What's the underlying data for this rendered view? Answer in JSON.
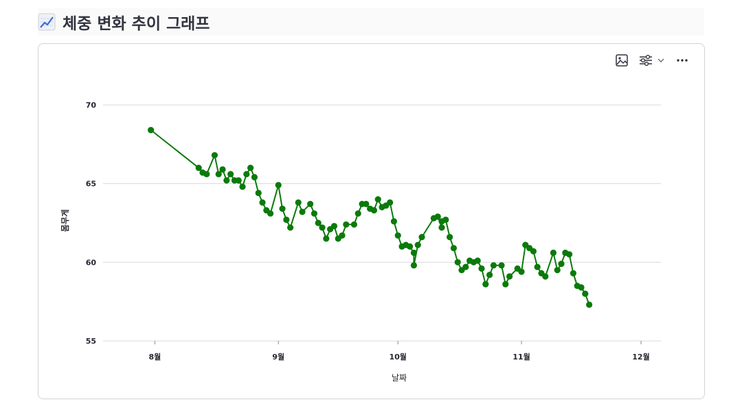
{
  "page": {
    "title": "체중 변화 추이 그래프",
    "title_icon": "chart-increasing-icon"
  },
  "toolbar": {
    "icons": [
      "image-download-icon",
      "filter-sliders-icon",
      "chevron-down-icon",
      "more-options-icon"
    ]
  },
  "colors": {
    "line": "#0a7a0a",
    "grid": "#d9d9d9",
    "text": "#262730"
  },
  "chart_data": {
    "type": "line",
    "title": "",
    "xlabel": "날짜",
    "ylabel": "몸무게",
    "xlim": [
      "2024-07-19",
      "2024-12-06"
    ],
    "ylim": [
      55,
      71
    ],
    "yticks": [
      55,
      60,
      65,
      70
    ],
    "xticks": [
      {
        "label": "8월",
        "date": "2024-08-01"
      },
      {
        "label": "9월",
        "date": "2024-09-01"
      },
      {
        "label": "10월",
        "date": "2024-10-01"
      },
      {
        "label": "11월",
        "date": "2024-11-01"
      },
      {
        "label": "12월",
        "date": "2024-12-01"
      }
    ],
    "grid": true,
    "legend": "none",
    "series": [
      {
        "points": [
          [
            "2024-07-31",
            68.4
          ],
          [
            "2024-08-12",
            66.0
          ],
          [
            "2024-08-13",
            65.7
          ],
          [
            "2024-08-14",
            65.6
          ],
          [
            "2024-08-16",
            66.8
          ],
          [
            "2024-08-17",
            65.6
          ],
          [
            "2024-08-18",
            65.9
          ],
          [
            "2024-08-19",
            65.2
          ],
          [
            "2024-08-20",
            65.6
          ],
          [
            "2024-08-21",
            65.2
          ],
          [
            "2024-08-22",
            65.2
          ],
          [
            "2024-08-23",
            64.8
          ],
          [
            "2024-08-24",
            65.6
          ],
          [
            "2024-08-25",
            66.0
          ],
          [
            "2024-08-26",
            65.4
          ],
          [
            "2024-08-27",
            64.4
          ],
          [
            "2024-08-28",
            63.8
          ],
          [
            "2024-08-29",
            63.3
          ],
          [
            "2024-08-30",
            63.1
          ],
          [
            "2024-09-01",
            64.9
          ],
          [
            "2024-09-02",
            63.4
          ],
          [
            "2024-09-03",
            62.7
          ],
          [
            "2024-09-04",
            62.2
          ],
          [
            "2024-09-06",
            63.8
          ],
          [
            "2024-09-07",
            63.2
          ],
          [
            "2024-09-09",
            63.7
          ],
          [
            "2024-09-10",
            63.1
          ],
          [
            "2024-09-11",
            62.5
          ],
          [
            "2024-09-12",
            62.2
          ],
          [
            "2024-09-13",
            61.5
          ],
          [
            "2024-09-14",
            62.1
          ],
          [
            "2024-09-15",
            62.3
          ],
          [
            "2024-09-16",
            61.5
          ],
          [
            "2024-09-17",
            61.7
          ],
          [
            "2024-09-18",
            62.4
          ],
          [
            "2024-09-20",
            62.4
          ],
          [
            "2024-09-21",
            63.1
          ],
          [
            "2024-09-22",
            63.7
          ],
          [
            "2024-09-23",
            63.7
          ],
          [
            "2024-09-24",
            63.4
          ],
          [
            "2024-09-25",
            63.3
          ],
          [
            "2024-09-26",
            64.0
          ],
          [
            "2024-09-27",
            63.5
          ],
          [
            "2024-09-28",
            63.6
          ],
          [
            "2024-09-29",
            63.8
          ],
          [
            "2024-09-30",
            62.6
          ],
          [
            "2024-10-01",
            61.7
          ],
          [
            "2024-10-02",
            61.0
          ],
          [
            "2024-10-03",
            61.1
          ],
          [
            "2024-10-04",
            61.0
          ],
          [
            "2024-10-05",
            60.6
          ],
          [
            "2024-10-05",
            59.8
          ],
          [
            "2024-10-06",
            61.1
          ],
          [
            "2024-10-07",
            61.6
          ],
          [
            "2024-10-10",
            62.8
          ],
          [
            "2024-10-11",
            62.9
          ],
          [
            "2024-10-12",
            62.2
          ],
          [
            "2024-10-12",
            62.6
          ],
          [
            "2024-10-13",
            62.7
          ],
          [
            "2024-10-14",
            61.6
          ],
          [
            "2024-10-15",
            60.9
          ],
          [
            "2024-10-16",
            60.0
          ],
          [
            "2024-10-17",
            59.5
          ],
          [
            "2024-10-18",
            59.7
          ],
          [
            "2024-10-19",
            60.1
          ],
          [
            "2024-10-20",
            60.0
          ],
          [
            "2024-10-21",
            60.1
          ],
          [
            "2024-10-22",
            59.6
          ],
          [
            "2024-10-23",
            58.6
          ],
          [
            "2024-10-24",
            59.2
          ],
          [
            "2024-10-25",
            59.8
          ],
          [
            "2024-10-27",
            59.8
          ],
          [
            "2024-10-28",
            58.6
          ],
          [
            "2024-10-29",
            59.1
          ],
          [
            "2024-10-31",
            59.6
          ],
          [
            "2024-11-01",
            59.4
          ],
          [
            "2024-11-02",
            61.1
          ],
          [
            "2024-11-03",
            60.9
          ],
          [
            "2024-11-04",
            60.7
          ],
          [
            "2024-11-05",
            59.7
          ],
          [
            "2024-11-06",
            59.3
          ],
          [
            "2024-11-07",
            59.1
          ],
          [
            "2024-11-09",
            60.6
          ],
          [
            "2024-11-10",
            59.5
          ],
          [
            "2024-11-11",
            59.9
          ],
          [
            "2024-11-12",
            60.6
          ],
          [
            "2024-11-13",
            60.5
          ],
          [
            "2024-11-14",
            59.3
          ],
          [
            "2024-11-15",
            58.5
          ],
          [
            "2024-11-16",
            58.4
          ],
          [
            "2024-11-17",
            58.0
          ],
          [
            "2024-11-18",
            57.3
          ]
        ]
      }
    ]
  }
}
